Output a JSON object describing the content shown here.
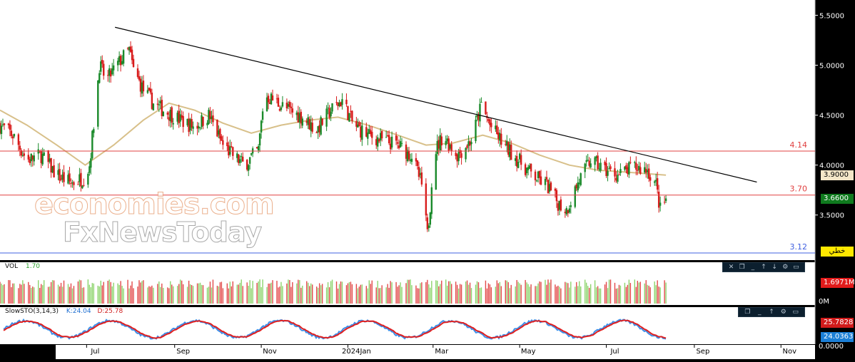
{
  "chart_data": [
    {
      "type": "candlestick",
      "yaxis": {
        "ticks": [
          "5.5000",
          "5.0000",
          "4.5000",
          "4.0000",
          "3.5000"
        ],
        "ylim": [
          3.07,
          5.61
        ]
      },
      "xaxis": {
        "ticks": [
          "Jul",
          "Sep",
          "Nov",
          "2024Jan",
          "Mar",
          "May",
          "Jul",
          "Sep",
          "Nov"
        ]
      },
      "x_range": [
        "2023-05-01",
        "2024-11-25"
      ],
      "series": [
        {
          "kind": "close",
          "points": [
            [
              "2023-05-01",
              4.4
            ],
            [
              "2023-05-10",
              4.3
            ],
            [
              "2023-05-20",
              4.05
            ],
            [
              "2023-05-30",
              4.1
            ],
            [
              "2023-06-10",
              3.9
            ],
            [
              "2023-06-20",
              3.82
            ],
            [
              "2023-06-30",
              3.88
            ],
            [
              "2023-07-03",
              4.0
            ],
            [
              "2023-07-07",
              4.55
            ],
            [
              "2023-07-10",
              5.0
            ],
            [
              "2023-07-15",
              4.85
            ],
            [
              "2023-07-20",
              4.95
            ],
            [
              "2023-07-25",
              5.05
            ],
            [
              "2023-07-31",
              5.15
            ],
            [
              "2023-08-03",
              4.95
            ],
            [
              "2023-08-10",
              4.75
            ],
            [
              "2023-08-18",
              4.6
            ],
            [
              "2023-08-28",
              4.52
            ],
            [
              "2023-09-05",
              4.45
            ],
            [
              "2023-09-15",
              4.38
            ],
            [
              "2023-09-25",
              4.5
            ],
            [
              "2023-10-05",
              4.2
            ],
            [
              "2023-10-12",
              4.1
            ],
            [
              "2023-10-20",
              4.0
            ],
            [
              "2023-10-30",
              4.15
            ],
            [
              "2023-11-03",
              4.7
            ],
            [
              "2023-11-10",
              4.65
            ],
            [
              "2023-11-20",
              4.55
            ],
            [
              "2023-11-30",
              4.48
            ],
            [
              "2023-12-10",
              4.35
            ],
            [
              "2023-12-20",
              4.55
            ],
            [
              "2023-12-28",
              4.65
            ],
            [
              "2024-01-05",
              4.4
            ],
            [
              "2024-01-15",
              4.3
            ],
            [
              "2024-01-25",
              4.25
            ],
            [
              "2024-02-05",
              4.2
            ],
            [
              "2024-02-15",
              4.1
            ],
            [
              "2024-02-22",
              3.8
            ],
            [
              "2024-02-26",
              3.3
            ],
            [
              "2024-02-28",
              3.6
            ],
            [
              "2024-03-01",
              4.1
            ],
            [
              "2024-03-08",
              4.3
            ],
            [
              "2024-03-18",
              4.1
            ],
            [
              "2024-03-28",
              4.25
            ],
            [
              "2024-04-04",
              4.6
            ],
            [
              "2024-04-10",
              4.4
            ],
            [
              "2024-04-20",
              4.2
            ],
            [
              "2024-04-30",
              4.05
            ],
            [
              "2024-05-10",
              3.9
            ],
            [
              "2024-05-20",
              3.8
            ],
            [
              "2024-05-28",
              3.62
            ],
            [
              "2024-06-03",
              3.55
            ],
            [
              "2024-06-08",
              3.72
            ],
            [
              "2024-06-12",
              3.85
            ],
            [
              "2024-06-20",
              4.05
            ],
            [
              "2024-06-30",
              3.95
            ],
            [
              "2024-07-10",
              3.9
            ],
            [
              "2024-07-20",
              3.98
            ],
            [
              "2024-07-30",
              3.95
            ],
            [
              "2024-08-05",
              3.8
            ],
            [
              "2024-08-08",
              3.55
            ],
            [
              "2024-08-12",
              3.66
            ]
          ]
        },
        {
          "kind": "moving-average",
          "color": "#d8c08a",
          "points": [
            [
              "2023-05-01",
              4.55
            ],
            [
              "2023-05-20",
              4.4
            ],
            [
              "2023-06-10",
              4.2
            ],
            [
              "2023-06-30",
              4.0
            ],
            [
              "2023-07-20",
              4.2
            ],
            [
              "2023-08-10",
              4.45
            ],
            [
              "2023-08-28",
              4.62
            ],
            [
              "2023-09-15",
              4.55
            ],
            [
              "2023-10-05",
              4.42
            ],
            [
              "2023-10-25",
              4.32
            ],
            [
              "2023-11-15",
              4.4
            ],
            [
              "2023-12-05",
              4.45
            ],
            [
              "2023-12-25",
              4.48
            ],
            [
              "2024-01-15",
              4.4
            ],
            [
              "2024-02-05",
              4.3
            ],
            [
              "2024-02-25",
              4.2
            ],
            [
              "2024-03-15",
              4.22
            ],
            [
              "2024-04-05",
              4.3
            ],
            [
              "2024-04-25",
              4.22
            ],
            [
              "2024-05-15",
              4.1
            ],
            [
              "2024-06-05",
              4.0
            ],
            [
              "2024-06-25",
              3.95
            ],
            [
              "2024-07-15",
              3.93
            ],
            [
              "2024-08-12",
              3.9
            ]
          ]
        },
        {
          "kind": "trendline",
          "color": "#000000",
          "points": [
            [
              "2023-07-21",
              5.38
            ],
            [
              "2024-10-15",
              3.83
            ]
          ]
        }
      ],
      "horizontal_lines": [
        {
          "value": 4.14,
          "label": "4.14",
          "color": "#e04040"
        },
        {
          "value": 3.7,
          "label": "3.70",
          "color": "#e04040"
        },
        {
          "value": 3.12,
          "label": "3.12",
          "color": "#4060e0"
        }
      ],
      "price_labels": [
        {
          "value": 3.9,
          "text": "3.9000",
          "bg": "#f4e7c8",
          "fg": "#000000"
        },
        {
          "value": 3.66,
          "text": "3.6600",
          "bg": "#0f7a1e",
          "fg": "#ffffff"
        }
      ],
      "scale_badge": {
        "text": "خطي",
        "bg": "#ffe800",
        "fg": "#000000"
      }
    },
    {
      "type": "bar",
      "title": "VOL",
      "value_label": "1.70",
      "yaxis": {
        "ticks": [
          "0M"
        ]
      },
      "last_value": "1.6971M",
      "last_value_bg": "#e21b1b"
    },
    {
      "type": "line",
      "title": "SlowSTO(3,14,3)",
      "k_label": "K:24.04",
      "d_label": "D:25.78",
      "yaxis": {
        "ticks": [
          "0.0000"
        ]
      },
      "series": [
        {
          "name": "K",
          "color": "#3d8fe8",
          "last": "24.0363"
        },
        {
          "name": "D",
          "color": "#e02020",
          "last": "25.7828"
        }
      ]
    }
  ],
  "watermark": {
    "line1": "economies.com",
    "line2": "FxNewsToday"
  },
  "toolbar_icons": [
    "close-icon",
    "restore-icon",
    "minimize-icon",
    "up-arrow-icon",
    "down-arrow-icon",
    "settings-icon",
    "more-icon"
  ]
}
